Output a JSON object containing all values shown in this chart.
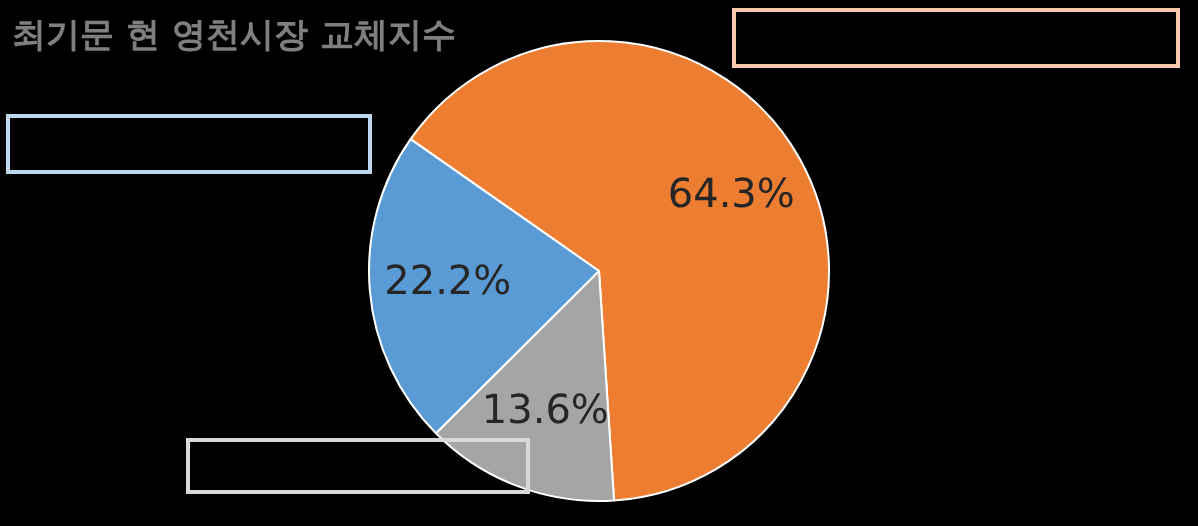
{
  "chart_data": {
    "type": "pie",
    "title": "최기문 현 영천시장 교체지수",
    "categories": [
      null,
      null,
      null
    ],
    "values": [
      64.3,
      13.6,
      22.2
    ],
    "colors": [
      "#ed7d31",
      "#a5a5a5",
      "#5b9bd5"
    ],
    "value_labels": [
      "64.3%",
      "13.6%",
      "22.2%"
    ],
    "legend": false
  }
}
